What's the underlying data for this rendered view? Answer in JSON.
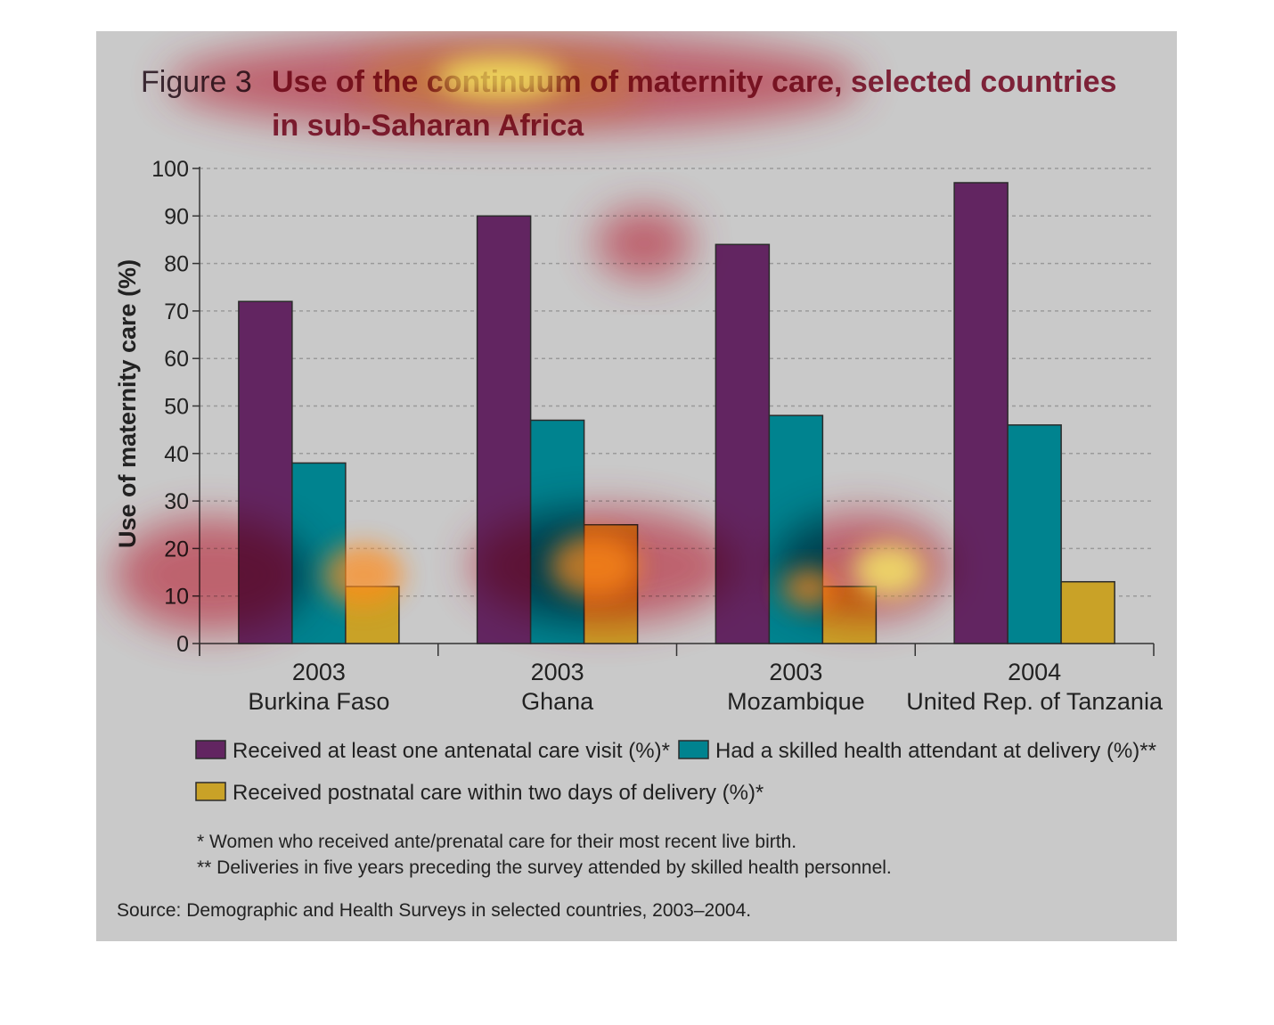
{
  "figure_label": "Figure 3",
  "title_line1": "Use of the continuum of maternity care, selected countries",
  "title_line2": "in sub-Saharan Africa",
  "chart_data": {
    "type": "bar",
    "title": "Use of the continuum of maternity care, selected countries in sub-Saharan Africa",
    "ylabel": "Use of maternity care (%)",
    "xlabel": "",
    "ylim": [
      0,
      100
    ],
    "yticks": [
      0,
      10,
      20,
      30,
      40,
      50,
      60,
      70,
      80,
      90,
      100
    ],
    "grid": true,
    "legend_position": "bottom",
    "categories": [
      {
        "year": "2003",
        "country": "Burkina Faso"
      },
      {
        "year": "2003",
        "country": "Ghana"
      },
      {
        "year": "2003",
        "country": "Mozambique"
      },
      {
        "year": "2004",
        "country": "United Rep. of Tanzania"
      }
    ],
    "series": [
      {
        "name": "Received at least one antenatal care visit (%)*",
        "color": "#622561",
        "values": [
          72,
          90,
          84,
          97
        ]
      },
      {
        "name": "Had a skilled health attendant at delivery (%)**",
        "color": "#00838f",
        "values": [
          38,
          47,
          48,
          46
        ]
      },
      {
        "name": "Received postnatal care within two days of delivery (%)*",
        "color": "#c9a227",
        "values": [
          12,
          25,
          12,
          13
        ]
      }
    ]
  },
  "notes": [
    "* Women who received ante/prenatal care for their most recent live birth.",
    "** Deliveries in five years preceding the survey attended by skilled health personnel."
  ],
  "source": "Source: Demographic and Health Surveys in selected countries, 2003–2004.",
  "heatmap_colors": {
    "hot": "#ffff66",
    "mid": "#ff8c1a",
    "cool": "#e8304a"
  }
}
